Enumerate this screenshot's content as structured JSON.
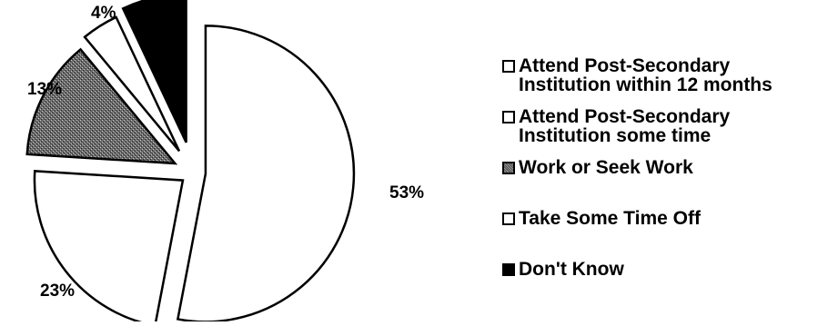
{
  "chart_data": {
    "type": "pie",
    "title": "",
    "slices": [
      {
        "label": "Attend Post-Secondary Institution within 12 months",
        "value": 53,
        "value_label": "53%",
        "fill": "#ffffff",
        "pattern": "none"
      },
      {
        "label": "Attend Post-Secondary Institution some time",
        "value": 23,
        "value_label": "23%",
        "fill": "#ffffff",
        "pattern": "none"
      },
      {
        "label": "Work or Seek Work",
        "value": 13,
        "value_label": "13%",
        "fill": "#555555",
        "pattern": "stipple"
      },
      {
        "label": "Take Some Time Off",
        "value": 4,
        "value_label": "4%",
        "fill": "#ffffff",
        "pattern": "none"
      },
      {
        "label": "Don't Know",
        "value": 7,
        "value_label": "",
        "fill": "#000000",
        "pattern": "none"
      }
    ],
    "start_angle_deg": 0,
    "direction": "clockwise",
    "exploded": true,
    "legend_position": "right"
  },
  "legend": {
    "items": [
      {
        "label": "Attend Post-Secondary\nInstitution within 12 months",
        "color": "#ffffff",
        "pattern": "none"
      },
      {
        "label": "Attend Post-Secondary\nInstitution some time",
        "color": "#ffffff",
        "pattern": "none"
      },
      {
        "label": "Work or Seek Work",
        "color": "#555555",
        "pattern": "stipple"
      },
      {
        "label": "Take Some Time Off",
        "color": "#ffffff",
        "pattern": "none"
      },
      {
        "label": "Don't Know",
        "color": "#000000",
        "pattern": "none"
      }
    ]
  }
}
